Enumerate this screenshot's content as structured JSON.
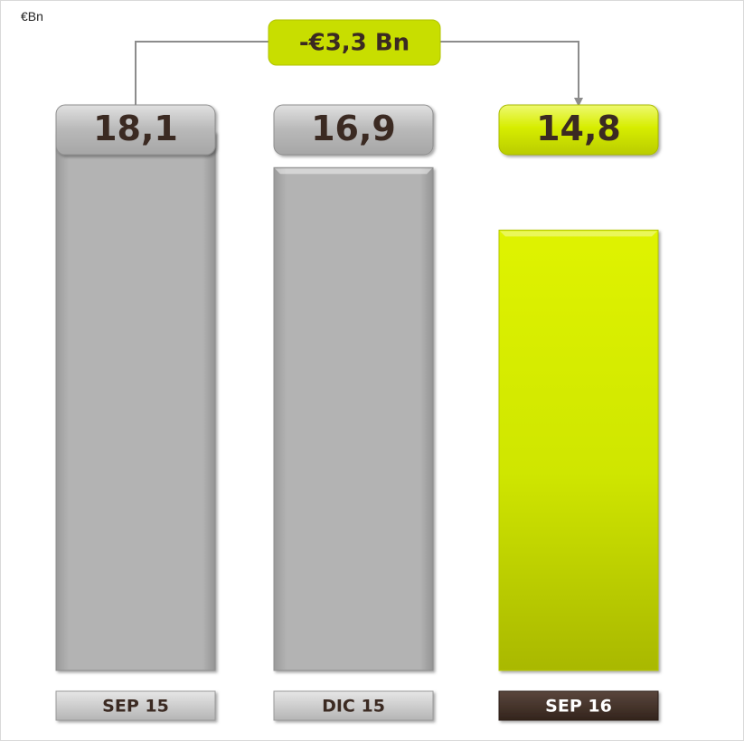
{
  "chart_data": {
    "type": "bar",
    "unit": "€Bn",
    "categories": [
      "SEP 15",
      "DIC 15",
      "SEP 16"
    ],
    "values": [
      18.1,
      16.9,
      14.8
    ],
    "value_labels": [
      "18,1",
      "16,9",
      "14,8"
    ],
    "highlight_index": 2,
    "ylim": [
      0,
      22.2
    ],
    "difference_annotation": {
      "from_index": 0,
      "to_index": 2,
      "label": "-€3,3 Bn"
    },
    "colors": {
      "bar_default": "#b3b3b3",
      "bar_highlight": "#d4ec00",
      "label_text": "#3b2a22",
      "category_highlight_bg": "#3d2b22",
      "category_highlight_text": "#ffffff",
      "category_default_text": "#3b2a22",
      "annotation_bg": "#c8de00",
      "connector": "#8c8c8c"
    }
  }
}
